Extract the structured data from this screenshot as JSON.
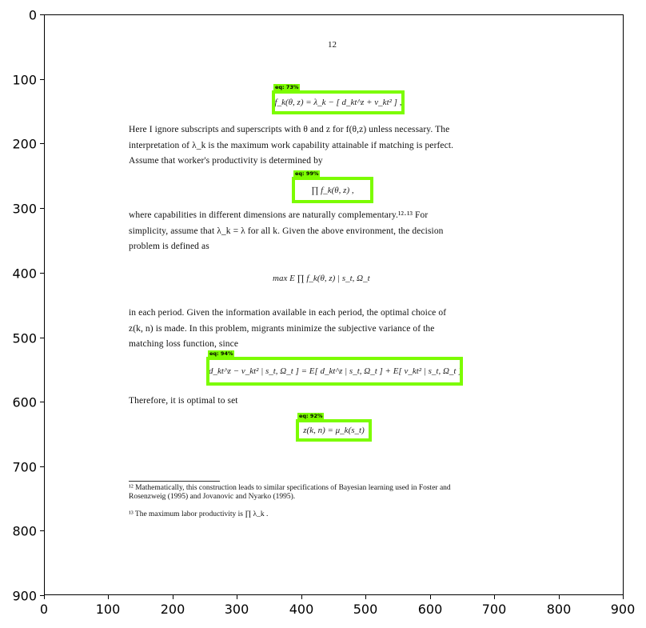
{
  "axes": {
    "x_ticks": [
      "0",
      "100",
      "200",
      "300",
      "400",
      "500",
      "600",
      "700",
      "800",
      "900"
    ],
    "y_ticks": [
      "0",
      "100",
      "200",
      "300",
      "400",
      "500",
      "600",
      "700",
      "800",
      "900"
    ]
  },
  "page": {
    "number": "12",
    "para1": [
      "Here I ignore subscripts and superscripts with θ and z for f(θ,z) unless necessary.  The",
      "interpretation of λ_k is the maximum work capability attainable if matching is perfect.",
      "Assume that worker's productivity is determined by"
    ],
    "para2": [
      "where capabilities in different dimensions are naturally complementary.¹²·¹³  For",
      "simplicity, assume that λ_k = λ for all k.  Given the above environment, the decision",
      "problem is defined as"
    ],
    "display_eq": "max   E  ∏  f_k(θ, z) | s_t, Ω_t",
    "para3": [
      "in each period.  Given the information available in each period, the optimal choice of",
      "z(k, n) is made.  In this problem, migrants minimize the subjective variance of the",
      "matching loss function, since"
    ],
    "para4": "Therefore, it is optimal to set",
    "footnotes": [
      "¹² Mathematically, this construction leads to similar specifications of Bayesian learning used in Foster and",
      "Rosenzweig (1995) and Jovanovic and Nyarko (1995).",
      "¹³ The maximum labor productivity is  ∏  λ_k ."
    ]
  },
  "equations": [
    {
      "tag": "eq: 73%",
      "content": "f_k(θ, z) = λ_k − [ d_kt^z + ν_kt² ] ,"
    },
    {
      "tag": "eq: 99%",
      "content": "∏ f_k(θ, z) ,"
    },
    {
      "tag": "eq: 94%",
      "content": "[ d_kt^z − ν_kt² | s_t, Ω_t ] = E[ d_kt^z | s_t, Ω_t ] + E[ ν_kt² | s_t, Ω_t ] ,"
    },
    {
      "tag": "eq: 92%",
      "content": "z(k, n) = μ_k(s_t)"
    }
  ],
  "colors": {
    "highlight": "#7cfc00"
  }
}
